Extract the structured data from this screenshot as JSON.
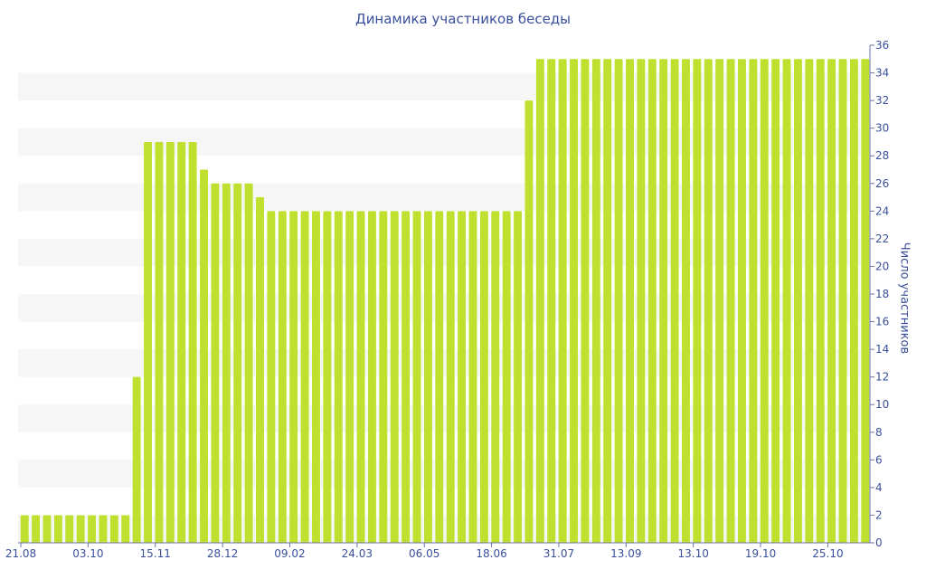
{
  "chart_data": {
    "type": "bar",
    "title": "Динамика участников беседы",
    "ylabel": "Число участников",
    "xlabel": "",
    "ylim": [
      0,
      36
    ],
    "yticks": [
      0,
      2,
      4,
      6,
      8,
      10,
      12,
      14,
      16,
      18,
      20,
      22,
      24,
      26,
      28,
      30,
      32,
      34,
      36
    ],
    "y_axis_side": "right",
    "grid": "alternating horizontal bands",
    "bar_color": "#bfe02e",
    "xtick_labels": [
      {
        "index": 0,
        "label": "21.08"
      },
      {
        "index": 6,
        "label": "03.10"
      },
      {
        "index": 12,
        "label": "15.11"
      },
      {
        "index": 18,
        "label": "28.12"
      },
      {
        "index": 24,
        "label": "09.02"
      },
      {
        "index": 30,
        "label": "24.03"
      },
      {
        "index": 36,
        "label": "06.05"
      },
      {
        "index": 42,
        "label": "18.06"
      },
      {
        "index": 48,
        "label": "31.07"
      },
      {
        "index": 54,
        "label": "13.09"
      },
      {
        "index": 60,
        "label": "13.10"
      },
      {
        "index": 66,
        "label": "19.10"
      },
      {
        "index": 72,
        "label": "25.10"
      }
    ],
    "values": [
      2,
      2,
      2,
      2,
      2,
      2,
      2,
      2,
      2,
      2,
      12,
      29,
      29,
      29,
      29,
      29,
      27,
      26,
      26,
      26,
      26,
      25,
      24,
      24,
      24,
      24,
      24,
      24,
      24,
      24,
      24,
      24,
      24,
      24,
      24,
      24,
      24,
      24,
      24,
      24,
      24,
      24,
      24,
      24,
      24,
      32,
      35,
      35,
      35,
      35,
      35,
      35,
      35,
      35,
      35,
      35,
      35,
      35,
      35,
      35,
      35,
      35,
      35,
      35,
      35,
      35,
      35,
      35,
      35,
      35,
      35,
      35,
      35,
      35,
      35,
      35
    ]
  }
}
